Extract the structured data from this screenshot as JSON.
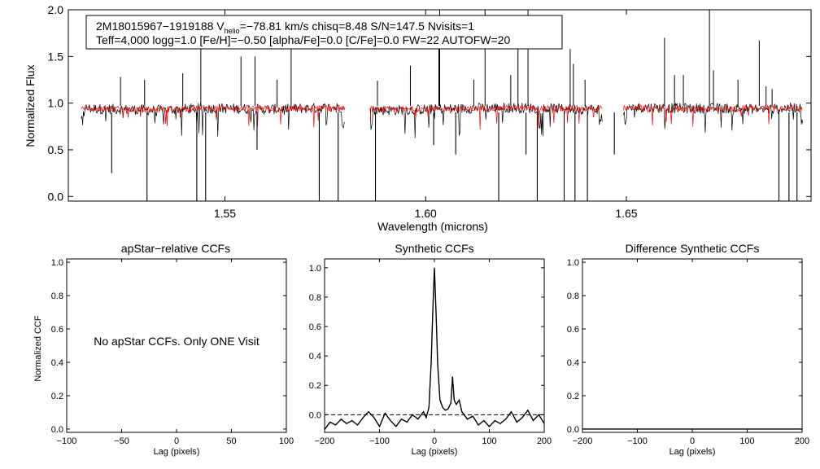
{
  "chart_data": [
    {
      "type": "line",
      "title": "",
      "header_line1": "2M18015967−1919188  V",
      "header_sub": "helio",
      "header_line1b": "=−78.81 km/s  chisq=8.48  S/N=147.5  Nvisits=1",
      "header_line2": "Teff=4,000 logg=1.0 [Fe/H]=−0.50 [alpha/Fe]=0.0 [C/Fe]=0.0 FW=22 AUTOFW=20",
      "xlabel": "Wavelength (microns)",
      "ylabel": "Normalized Flux",
      "xlim": [
        1.511,
        1.696
      ],
      "ylim": [
        -0.05,
        2.0
      ],
      "xticks": [
        {
          "v": 1.55,
          "label": "1.55"
        },
        {
          "v": 1.6,
          "label": "1.60"
        },
        {
          "v": 1.65,
          "label": "1.65"
        }
      ],
      "yticks": [
        {
          "v": 0.0,
          "label": "0.0"
        },
        {
          "v": 0.5,
          "label": "0.5"
        },
        {
          "v": 1.0,
          "label": "1.0"
        },
        {
          "v": 1.5,
          "label": "1.5"
        },
        {
          "v": 2.0,
          "label": "2.0"
        }
      ],
      "chips": [
        [
          1.5142,
          1.58
        ],
        [
          1.5862,
          1.644
        ],
        [
          1.6493,
          1.694
        ]
      ],
      "series": [
        {
          "color": "#000000",
          "continuum": 0.96,
          "noise": 0.035,
          "wavelengths": [
            1.515,
            1.525,
            1.5325,
            1.5425,
            1.55,
            1.56,
            1.57,
            1.579,
            1.59,
            1.6,
            1.61,
            1.62,
            1.63,
            1.64,
            1.655,
            1.665,
            1.675,
            1.685,
            1.692
          ],
          "flux": [
            0.96,
            0.95,
            0.94,
            0.96,
            0.96,
            0.95,
            0.96,
            0.97,
            0.94,
            0.95,
            0.96,
            0.97,
            0.96,
            0.95,
            0.97,
            0.96,
            0.96,
            0.95,
            0.97
          ]
        },
        {
          "color": "#ff0000",
          "continuum": 0.95,
          "noise": 0.02,
          "wavelengths": [
            1.517,
            1.53,
            1.54,
            1.55,
            1.56,
            1.57,
            1.578,
            1.588,
            1.6,
            1.61,
            1.62,
            1.63,
            1.642,
            1.652,
            1.665,
            1.675,
            1.685,
            1.691
          ],
          "flux": [
            0.95,
            0.94,
            0.95,
            0.96,
            0.95,
            0.95,
            0.96,
            0.94,
            0.95,
            0.95,
            0.96,
            0.95,
            0.95,
            0.96,
            0.95,
            0.95,
            0.96,
            0.96
          ]
        }
      ],
      "absorption_features": [
        {
          "x": 1.5218,
          "y": 0.25
        },
        {
          "x": 1.5306,
          "y": -0.05
        },
        {
          "x": 1.543,
          "y": -0.05
        },
        {
          "x": 1.5452,
          "y": -0.05
        },
        {
          "x": 1.558,
          "y": 0.5
        },
        {
          "x": 1.5735,
          "y": -0.05
        },
        {
          "x": 1.5782,
          "y": -0.05
        },
        {
          "x": 1.5875,
          "y": -0.05
        },
        {
          "x": 1.602,
          "y": 0.55
        },
        {
          "x": 1.6075,
          "y": 0.45
        },
        {
          "x": 1.6182,
          "y": -0.05
        },
        {
          "x": 1.625,
          "y": 0.45
        },
        {
          "x": 1.6278,
          "y": -0.05
        },
        {
          "x": 1.6345,
          "y": -0.05
        },
        {
          "x": 1.6372,
          "y": -0.05
        },
        {
          "x": 1.6403,
          "y": -0.05
        },
        {
          "x": 1.647,
          "y": 0.45
        },
        {
          "x": 1.688,
          "y": -0.05
        },
        {
          "x": 1.6905,
          "y": -0.05
        },
        {
          "x": 1.6925,
          "y": -0.05
        }
      ],
      "emission_spikes": [
        {
          "x": 1.524,
          "y": 1.28
        },
        {
          "x": 1.53,
          "y": 1.25
        },
        {
          "x": 1.5395,
          "y": 1.32
        },
        {
          "x": 1.544,
          "y": 1.72
        },
        {
          "x": 1.554,
          "y": 1.5
        },
        {
          "x": 1.5575,
          "y": 1.5
        },
        {
          "x": 1.563,
          "y": 1.25
        },
        {
          "x": 1.5665,
          "y": 1.7
        },
        {
          "x": 1.588,
          "y": 1.24
        },
        {
          "x": 1.5962,
          "y": 1.4
        },
        {
          "x": 1.6033,
          "y": 1.65
        },
        {
          "x": 1.6035,
          "y": 2.0
        },
        {
          "x": 1.612,
          "y": 1.25
        },
        {
          "x": 1.6148,
          "y": 2.0
        },
        {
          "x": 1.6212,
          "y": 1.3
        },
        {
          "x": 1.623,
          "y": 1.65
        },
        {
          "x": 1.6255,
          "y": 2.0
        },
        {
          "x": 1.636,
          "y": 1.58
        },
        {
          "x": 1.6368,
          "y": 1.42
        },
        {
          "x": 1.6397,
          "y": 1.25
        },
        {
          "x": 1.6595,
          "y": 1.7
        },
        {
          "x": 1.662,
          "y": 1.3
        },
        {
          "x": 1.6642,
          "y": 1.3
        },
        {
          "x": 1.6707,
          "y": 2.0
        },
        {
          "x": 1.6717,
          "y": 1.35
        },
        {
          "x": 1.6778,
          "y": 1.25
        },
        {
          "x": 1.6831,
          "y": 1.67
        },
        {
          "x": 1.6848,
          "y": 1.18
        },
        {
          "x": 1.6863,
          "y": 1.15
        }
      ]
    },
    {
      "type": "line",
      "title": "apStar−relative CCFs",
      "xlabel": "Lag (pixels)",
      "ylabel": "Normalized CCF",
      "xlim": [
        -100,
        100
      ],
      "ylim": [
        -0.02,
        1.02
      ],
      "xticks": [
        {
          "v": -100,
          "label": "−100"
        },
        {
          "v": -50,
          "label": "−50"
        },
        {
          "v": 0,
          "label": "0"
        },
        {
          "v": 50,
          "label": "50"
        },
        {
          "v": 100,
          "label": "100"
        }
      ],
      "yticks": [
        {
          "v": 0.0,
          "label": "0.0"
        },
        {
          "v": 0.2,
          "label": "0.2"
        },
        {
          "v": 0.4,
          "label": "0.4"
        },
        {
          "v": 0.6,
          "label": "0.6"
        },
        {
          "v": 0.8,
          "label": "0.8"
        },
        {
          "v": 1.0,
          "label": "1.0"
        }
      ],
      "annotation": "No apStar CCFs.  Only ONE Visit",
      "series": []
    },
    {
      "type": "line",
      "title": "Synthetic CCFs",
      "xlabel": "Lag (pixels)",
      "ylabel": "",
      "xlim": [
        -200,
        200
      ],
      "ylim": [
        -0.12,
        1.06
      ],
      "xticks": [
        {
          "v": -200,
          "label": "−200"
        },
        {
          "v": -100,
          "label": "−100"
        },
        {
          "v": 0,
          "label": "0"
        },
        {
          "v": 100,
          "label": "100"
        },
        {
          "v": 200,
          "label": "200"
        }
      ],
      "yticks": [
        {
          "v": 0.0,
          "label": "0.0"
        },
        {
          "v": 0.2,
          "label": "0.2"
        },
        {
          "v": 0.4,
          "label": "0.4"
        },
        {
          "v": 0.6,
          "label": "0.6"
        },
        {
          "v": 0.8,
          "label": "0.8"
        },
        {
          "v": 1.0,
          "label": "1.0"
        }
      ],
      "zero_line": true,
      "series": [
        {
          "color": "#000000",
          "x": [
            -200,
            -190,
            -180,
            -170,
            -160,
            -150,
            -140,
            -130,
            -120,
            -110,
            -100,
            -90,
            -80,
            -70,
            -60,
            -50,
            -40,
            -30,
            -20,
            -15,
            -10,
            -6,
            -3,
            0,
            3,
            6,
            10,
            15,
            20,
            25,
            30,
            33,
            36,
            40,
            45,
            50,
            60,
            70,
            80,
            90,
            100,
            110,
            120,
            130,
            140,
            150,
            160,
            170,
            180,
            190,
            200
          ],
          "y": [
            -0.1,
            -0.05,
            -0.07,
            -0.03,
            -0.06,
            -0.04,
            -0.07,
            -0.02,
            0.02,
            -0.02,
            -0.08,
            0.01,
            -0.04,
            -0.08,
            -0.03,
            -0.05,
            0.0,
            -0.03,
            0.02,
            -0.02,
            0.05,
            0.35,
            0.7,
            1.0,
            0.7,
            0.35,
            0.1,
            0.05,
            0.03,
            0.04,
            0.08,
            0.26,
            0.1,
            0.07,
            0.1,
            0.02,
            -0.03,
            -0.01,
            -0.07,
            -0.04,
            -0.08,
            -0.04,
            -0.06,
            -0.03,
            0.02,
            -0.05,
            -0.02,
            0.03,
            -0.04,
            0.0,
            -0.06
          ]
        }
      ]
    },
    {
      "type": "line",
      "title": "Difference Synthetic CCFs",
      "xlabel": "Lag (pixels)",
      "ylabel": "",
      "xlim": [
        -200,
        200
      ],
      "ylim": [
        -0.02,
        1.02
      ],
      "xticks": [
        {
          "v": -200,
          "label": "−200"
        },
        {
          "v": -100,
          "label": "−100"
        },
        {
          "v": 0,
          "label": "0"
        },
        {
          "v": 100,
          "label": "100"
        },
        {
          "v": 200,
          "label": "200"
        }
      ],
      "yticks": [
        {
          "v": 0.0,
          "label": "0.0"
        },
        {
          "v": 0.2,
          "label": "0.2"
        },
        {
          "v": 0.4,
          "label": "0.4"
        },
        {
          "v": 0.6,
          "label": "0.6"
        },
        {
          "v": 0.8,
          "label": "0.8"
        },
        {
          "v": 1.0,
          "label": "1.0"
        }
      ],
      "series": [
        {
          "color": "#000000",
          "x": [
            -200,
            200
          ],
          "y": [
            0.0,
            0.0
          ]
        }
      ]
    }
  ]
}
